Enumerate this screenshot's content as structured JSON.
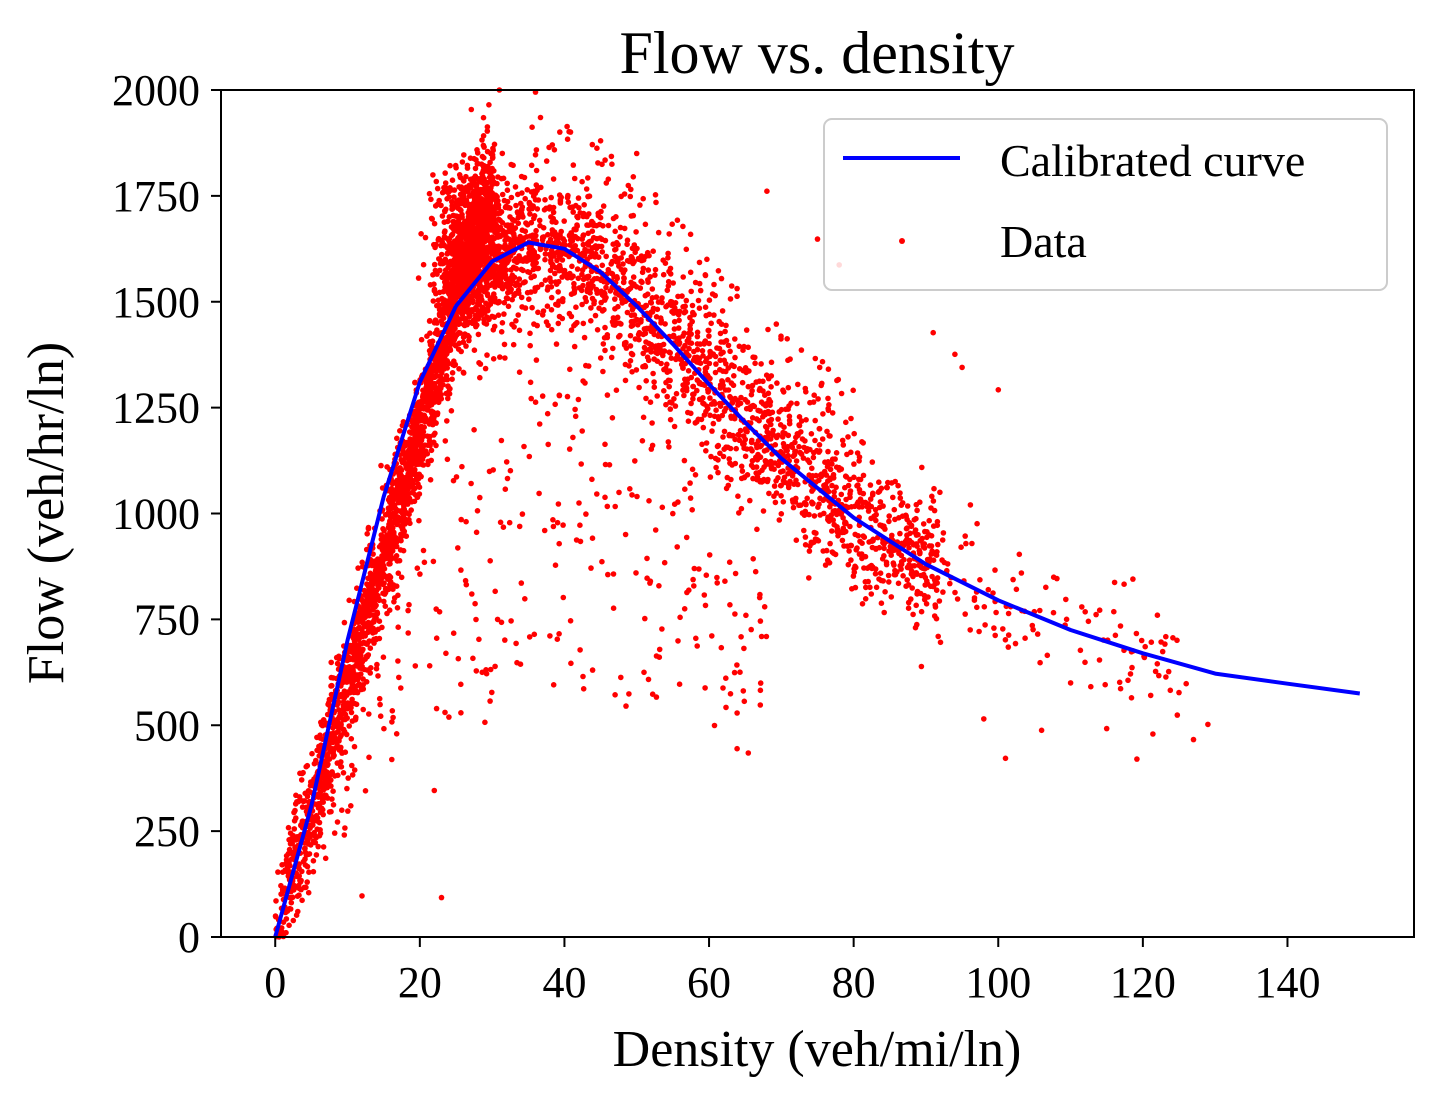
{
  "chart_data": {
    "type": "scatter",
    "title": "Flow vs. density",
    "xlabel": "Density (veh/mi/ln)",
    "ylabel": "Flow (veh/hr/ln)",
    "xlim": [
      -7.5,
      157.5
    ],
    "ylim": [
      0,
      2000
    ],
    "xticks": [
      0,
      20,
      40,
      60,
      80,
      100,
      120,
      140
    ],
    "yticks": [
      0,
      250,
      500,
      750,
      1000,
      1250,
      1500,
      1750,
      2000
    ],
    "xtick_labels": [
      "0",
      "20",
      "40",
      "60",
      "80",
      "100",
      "120",
      "140"
    ],
    "ytick_labels": [
      "0",
      "250",
      "500",
      "750",
      "1000",
      "1250",
      "1500",
      "1750",
      "2000"
    ],
    "grid": false,
    "legend": {
      "position": "upper-right",
      "entries": [
        {
          "label": "Calibrated curve",
          "kind": "line",
          "color": "#0000ff"
        },
        {
          "label": "Data",
          "kind": "marker",
          "color": "#ff0000"
        }
      ]
    },
    "series": [
      {
        "name": "Calibrated curve",
        "kind": "line",
        "color": "#0000ff",
        "x": [
          0,
          5,
          10,
          15,
          20,
          25,
          30,
          35,
          40,
          45,
          50,
          55,
          60,
          65,
          70,
          80,
          90,
          100,
          110,
          120,
          130,
          140,
          150
        ],
        "y": [
          0,
          310,
          700,
          1040,
          1310,
          1490,
          1595,
          1640,
          1625,
          1570,
          1490,
          1400,
          1305,
          1215,
          1130,
          990,
          880,
          795,
          725,
          670,
          622,
          598,
          575
        ]
      },
      {
        "name": "Data",
        "kind": "scatter",
        "color": "#ff0000",
        "x_range": [
          0,
          130
        ],
        "y_range": [
          0,
          2000
        ],
        "clusters": [
          {
            "region": "free-flow",
            "x_center": 15,
            "y_center": 1000,
            "slope_veh_per_hr": 65
          },
          {
            "region": "critical",
            "x_center": 28,
            "y_center": 1650
          },
          {
            "region": "congested",
            "x_center": 55,
            "y_center": 1350
          },
          {
            "region": "jammed",
            "x_center": 85,
            "y_center": 950
          }
        ],
        "sample_points": [
          [
            23,
            93
          ],
          [
            12,
            97
          ],
          [
            22,
            346
          ],
          [
            29,
            507
          ],
          [
            47,
            572
          ],
          [
            51,
            625
          ],
          [
            56,
            755
          ],
          [
            101,
            422
          ],
          [
            106,
            488
          ],
          [
            115,
            492
          ],
          [
            127,
            466
          ],
          [
            129,
            502
          ],
          [
            122,
            645
          ],
          [
            126,
            598
          ],
          [
            125,
            577
          ],
          [
            110,
            600
          ],
          [
            114,
            654
          ],
          [
            98,
            515
          ],
          [
            100,
            1292
          ],
          [
            91,
            1427
          ],
          [
            94,
            1376
          ],
          [
            95,
            1345
          ],
          [
            45,
            1880
          ],
          [
            50,
            1850
          ],
          [
            36,
            1995
          ],
          [
            31,
            2000
          ],
          [
            68,
            1761
          ],
          [
            75,
            1648
          ],
          [
            78,
            1587
          ]
        ]
      }
    ]
  }
}
